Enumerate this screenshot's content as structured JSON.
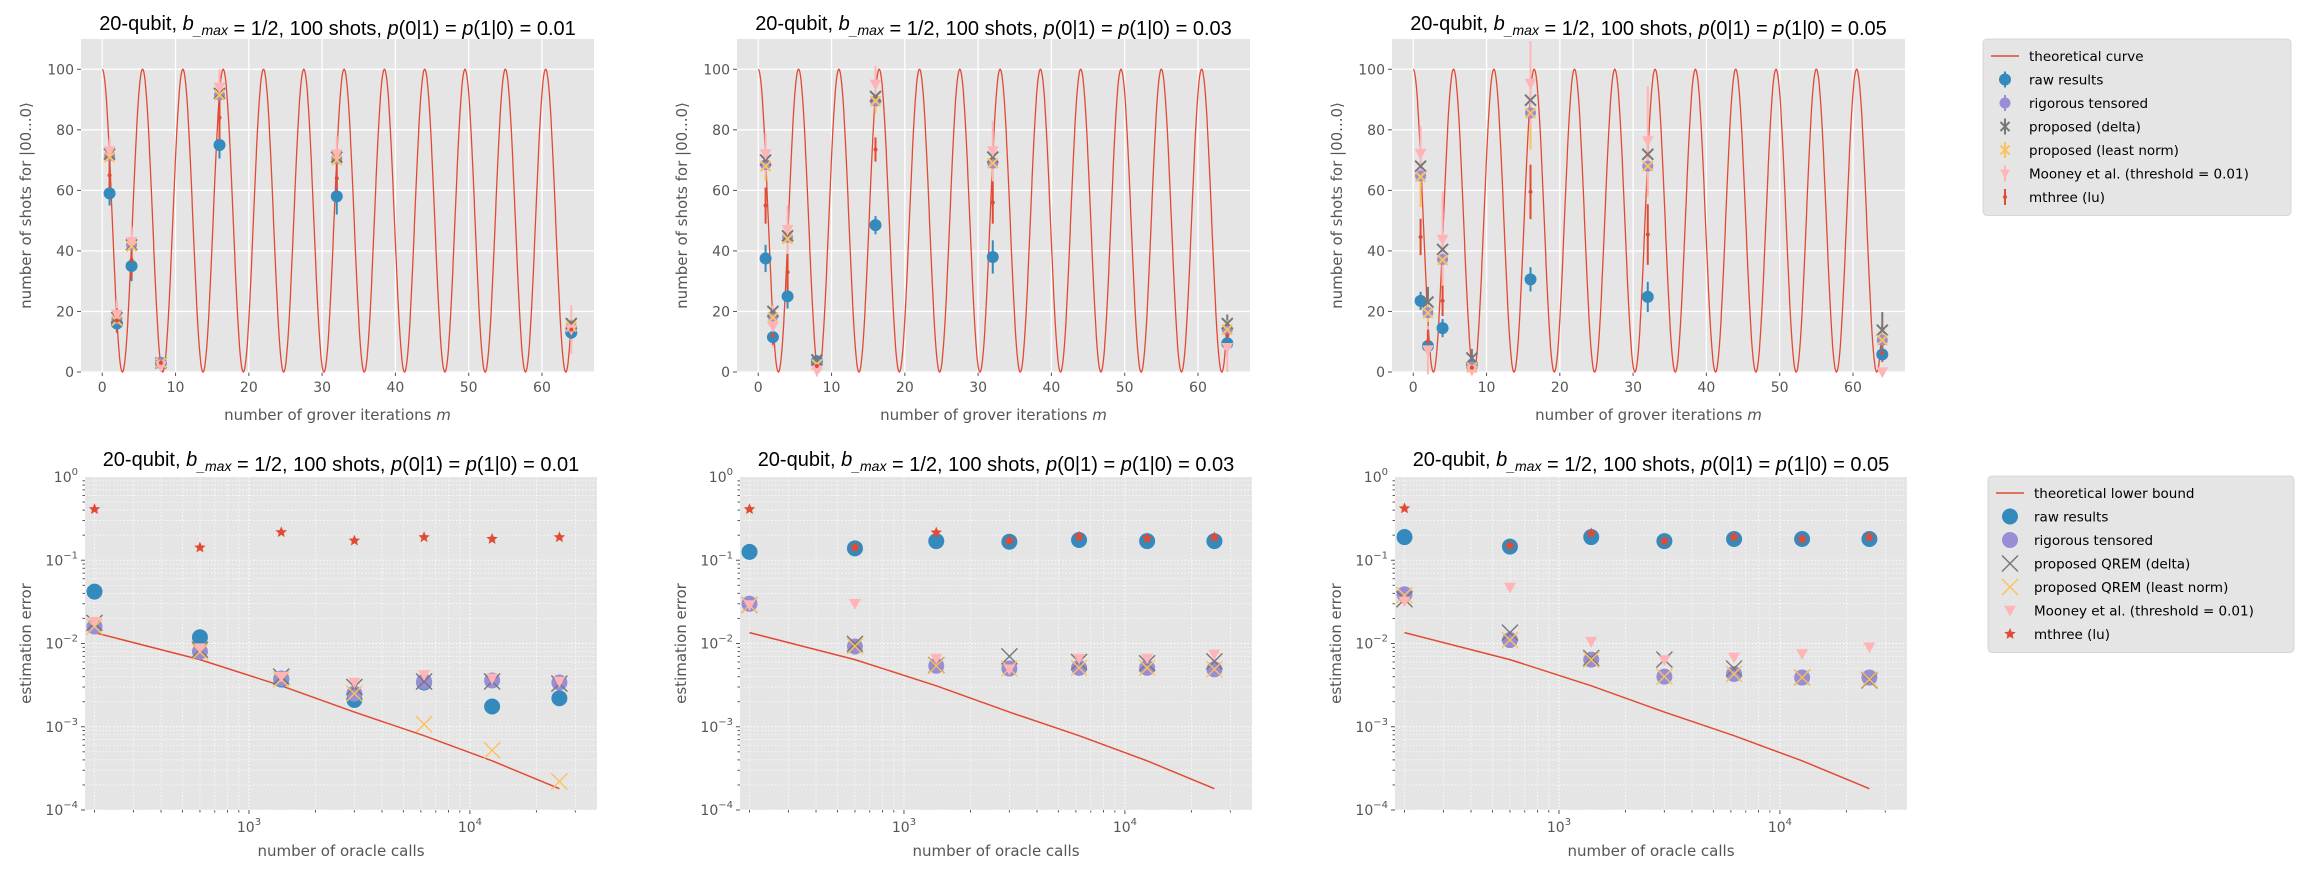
{
  "colors": {
    "background": "#E5E5E5",
    "grid": "#FFFFFF",
    "theory": "#E24A33",
    "raw": "#348ABD",
    "rigorous": "#988ED5",
    "delta": "#777777",
    "least_norm": "#FBC15E",
    "mooney": "#FFB5B8",
    "mthree": "#E24A33"
  },
  "legends": {
    "top": [
      "theoretical curve",
      "raw results",
      "rigorous tensored",
      "proposed (delta)",
      "proposed (least norm)",
      "Mooney et al. (threshold = 0.01)",
      "mthree (lu)"
    ],
    "bottom": [
      "theoretical lower bound",
      "raw results",
      "rigorous tensored",
      "proposed QREM (delta)",
      "proposed QREM (least norm)",
      "Mooney et al. (threshold = 0.01)",
      "mthree (lu)"
    ]
  },
  "chart_data": [
    {
      "type": "line",
      "row": "top",
      "title": "20-qubit, b_max = 1/2, 100 shots, p(0|1) = p(1|0) = 0.01",
      "xlabel": "number of grover iterations m",
      "ylabel": "number of shots for |00...0⟩",
      "xlim": [
        -2.9,
        67.1
      ],
      "ylim": [
        0,
        110
      ],
      "xticks": [
        "0",
        "10",
        "20",
        "30",
        "40",
        "50",
        "60"
      ],
      "yticks": [
        "0",
        "20",
        "40",
        "60",
        "80",
        "100"
      ],
      "grid": true,
      "theory": {
        "label": "theoretical curve",
        "amplitude": 100,
        "theta": 0.2856,
        "m_range": [
          0,
          64
        ]
      },
      "x": [
        1,
        2,
        4,
        8,
        16,
        32,
        64
      ],
      "series": [
        {
          "name": "raw results",
          "values": [
            59,
            16,
            35,
            3,
            75,
            58,
            13
          ],
          "yerr": [
            4,
            3,
            5,
            1.5,
            4.5,
            6,
            3
          ]
        },
        {
          "name": "rigorous tensored",
          "values": [
            71.5,
            17.5,
            42,
            3,
            91.5,
            70.5,
            15
          ],
          "yerr": [
            1.5,
            1,
            1.5,
            0.5,
            1.5,
            1.5,
            1
          ]
        },
        {
          "name": "proposed (delta)",
          "values": [
            72,
            18,
            42,
            3,
            92,
            71,
            16
          ],
          "yerr": [
            1,
            1,
            1,
            0.5,
            1,
            1,
            1.5
          ]
        },
        {
          "name": "proposed (least norm)",
          "values": [
            71,
            17,
            41.5,
            3,
            91.5,
            70,
            15
          ],
          "yerr": [
            2,
            2,
            2,
            1,
            2,
            2,
            2
          ]
        },
        {
          "name": "Mooney et al. (threshold = 0.01)",
          "values": [
            73,
            19,
            43,
            2,
            94,
            72,
            14
          ],
          "yerr": [
            4,
            5,
            5,
            2,
            6,
            6,
            8
          ]
        },
        {
          "name": "mthree (lu)",
          "values": [
            65,
            17,
            37,
            3,
            84,
            64,
            14
          ],
          "yerr": [
            7,
            4,
            6,
            2,
            7,
            8,
            3
          ]
        }
      ]
    },
    {
      "type": "line",
      "row": "top",
      "title": "20-qubit, b_max = 1/2, 100 shots, p(0|1) = p(1|0) = 0.03",
      "xlabel": "number of grover iterations m",
      "ylabel": "number of shots for |00...0⟩",
      "xlim": [
        -2.9,
        67.1
      ],
      "ylim": [
        0,
        110
      ],
      "xticks": [
        "0",
        "10",
        "20",
        "30",
        "40",
        "50",
        "60"
      ],
      "yticks": [
        "0",
        "20",
        "40",
        "60",
        "80",
        "100"
      ],
      "grid": true,
      "theory": {
        "label": "theoretical curve",
        "amplitude": 100,
        "theta": 0.2856,
        "m_range": [
          0,
          64
        ]
      },
      "x": [
        1,
        2,
        4,
        8,
        16,
        32,
        64
      ],
      "series": [
        {
          "name": "raw results",
          "values": [
            37.5,
            11.5,
            25,
            3.5,
            48.5,
            38,
            9.5
          ],
          "yerr": [
            4.5,
            3,
            4,
            2,
            3,
            5.5,
            3
          ]
        },
        {
          "name": "rigorous tensored",
          "values": [
            68.5,
            18.5,
            44.5,
            2.5,
            89.5,
            69,
            14
          ],
          "yerr": [
            2,
            2,
            2,
            1,
            2,
            2,
            2
          ]
        },
        {
          "name": "proposed (delta)",
          "values": [
            70,
            20,
            45,
            4,
            91,
            71,
            16
          ],
          "yerr": [
            2,
            2,
            2,
            1.5,
            2,
            2,
            3
          ]
        },
        {
          "name": "proposed (least norm)",
          "values": [
            68,
            18,
            44,
            2.5,
            89.5,
            69,
            14
          ],
          "yerr": [
            5,
            4,
            4,
            1,
            4,
            5,
            3
          ]
        },
        {
          "name": "Mooney et al. (threshold = 0.01)",
          "values": [
            72,
            15,
            47,
            0.5,
            95,
            73,
            8
          ],
          "yerr": [
            7,
            7,
            8,
            2,
            6,
            10,
            8
          ]
        },
        {
          "name": "mthree (lu)",
          "values": [
            55,
            12,
            33,
            2,
            73.5,
            56,
            12
          ],
          "yerr": [
            6,
            3,
            6,
            1,
            4,
            7,
            3
          ]
        }
      ]
    },
    {
      "type": "line",
      "row": "top",
      "title": "20-qubit, b_max = 1/2, 100 shots, p(0|1) = p(1|0) = 0.05",
      "xlabel": "number of grover iterations m",
      "ylabel": "number of shots for |00...0⟩",
      "xlim": [
        -2.9,
        67.1
      ],
      "ylim": [
        0,
        110
      ],
      "xticks": [
        "0",
        "10",
        "20",
        "30",
        "40",
        "50",
        "60"
      ],
      "yticks": [
        "0",
        "20",
        "40",
        "60",
        "80",
        "100"
      ],
      "grid": true,
      "theory": {
        "label": "theoretical curve",
        "amplitude": 100,
        "theta": 0.2856,
        "m_range": [
          0,
          64
        ]
      },
      "x": [
        1,
        2,
        4,
        8,
        16,
        32,
        64
      ],
      "series": [
        {
          "name": "raw results",
          "values": [
            23.5,
            8.6,
            14.5,
            2.2,
            30.6,
            24.8,
            5.8
          ],
          "yerr": [
            3,
            3,
            3,
            1.5,
            4,
            5,
            2
          ]
        },
        {
          "name": "rigorous tensored",
          "values": [
            64.8,
            19.6,
            37.2,
            1.7,
            85.6,
            68,
            10.5
          ],
          "yerr": [
            2,
            2,
            2,
            1,
            2,
            2,
            2
          ]
        },
        {
          "name": "proposed (delta)",
          "values": [
            68,
            23.1,
            40.5,
            4.6,
            89.8,
            71.9,
            13.8
          ],
          "yerr": [
            2,
            5,
            2,
            3,
            2,
            3,
            6
          ]
        },
        {
          "name": "proposed (least norm)",
          "values": [
            64.5,
            19.5,
            37,
            1.5,
            85.5,
            68,
            10.5
          ],
          "yerr": [
            10,
            3,
            9,
            1,
            12,
            10,
            3
          ]
        },
        {
          "name": "Mooney et al. (threshold = 0.01)",
          "values": [
            72.1,
            7.2,
            43.7,
            0.5,
            95.3,
            76.3,
            0
          ],
          "yerr": [
            9,
            8,
            16,
            1,
            14,
            18,
            1
          ]
        },
        {
          "name": "mthree (lu)",
          "values": [
            44.6,
            10,
            23.5,
            1.4,
            59.5,
            45.4,
            6.3
          ],
          "yerr": [
            6,
            4,
            5,
            1,
            9,
            10,
            3
          ]
        }
      ]
    },
    {
      "type": "scatter",
      "row": "bottom",
      "title": "20-qubit, b_max = 1/2, 100 shots, p(0|1) = p(1|0) = 0.01",
      "xlabel": "number of oracle calls",
      "ylabel": "estimation error",
      "xscale": "log",
      "yscale": "log",
      "xlim_log10": [
        2.258,
        4.575
      ],
      "ylim": [
        0.0001,
        1
      ],
      "xticks": [
        "3",
        "4"
      ],
      "yticks": [
        "0",
        "-1",
        "-2",
        "-3",
        "-4"
      ],
      "grid": true,
      "x": [
        200,
        600,
        1400,
        3000,
        6200,
        12600,
        25400
      ],
      "lower_bound": {
        "label": "theoretical lower bound",
        "values": [
          0.0135,
          0.0064,
          0.0031,
          0.0015,
          0.00078,
          0.00039,
          0.00018
        ]
      },
      "series": [
        {
          "name": "raw results",
          "values": [
            0.042,
            0.0119,
            0.0037,
            0.0021,
            0.0034,
            0.00175,
            0.0022
          ]
        },
        {
          "name": "rigorous tensored",
          "values": [
            0.016,
            0.008,
            0.0038,
            0.0025,
            0.0035,
            0.0036,
            0.0034
          ]
        },
        {
          "name": "proposed QREM (delta)",
          "values": [
            0.0177,
            0.0084,
            0.004,
            0.003,
            0.0035,
            0.0035,
            0.0033
          ]
        },
        {
          "name": "proposed QREM (least norm)",
          "values": [
            0.016,
            0.008,
            0.0037,
            0.0025,
            0.00107,
            0.00052,
            0.00022
          ]
        },
        {
          "name": "Mooney et al. (threshold = 0.01)",
          "values": [
            0.0182,
            0.0088,
            0.004,
            0.0034,
            0.0042,
            0.0038,
            0.0035
          ]
        },
        {
          "name": "mthree (lu)",
          "values": [
            0.41,
            0.142,
            0.217,
            0.172,
            0.189,
            0.18,
            0.189
          ]
        }
      ]
    },
    {
      "type": "scatter",
      "row": "bottom",
      "title": "20-qubit, b_max = 1/2, 100 shots, p(0|1) = p(1|0) = 0.03",
      "xlabel": "number of oracle calls",
      "ylabel": "estimation error",
      "xscale": "log",
      "yscale": "log",
      "xlim_log10": [
        2.258,
        4.575
      ],
      "ylim": [
        0.0001,
        1
      ],
      "xticks": [
        "3",
        "4"
      ],
      "yticks": [
        "0",
        "-1",
        "-2",
        "-3",
        "-4"
      ],
      "grid": true,
      "x": [
        200,
        600,
        1400,
        3000,
        6200,
        12600,
        25400
      ],
      "lower_bound": {
        "label": "theoretical lower bound",
        "values": [
          0.0135,
          0.0064,
          0.0031,
          0.0015,
          0.00078,
          0.00039,
          0.00018
        ]
      },
      "series": [
        {
          "name": "raw results",
          "values": [
            0.126,
            0.139,
            0.17,
            0.167,
            0.175,
            0.17,
            0.17
          ]
        },
        {
          "name": "rigorous tensored",
          "values": [
            0.03,
            0.0092,
            0.0054,
            0.005,
            0.0051,
            0.0051,
            0.0049
          ]
        },
        {
          "name": "proposed QREM (delta)",
          "values": [
            0.029,
            0.0099,
            0.0055,
            0.007,
            0.006,
            0.0058,
            0.0061
          ]
        },
        {
          "name": "proposed QREM (least norm)",
          "values": [
            0.029,
            0.0093,
            0.0054,
            0.005,
            0.0051,
            0.0051,
            0.0049
          ]
        },
        {
          "name": "Mooney et al. (threshold = 0.01)",
          "values": [
            0.029,
            0.03,
            0.0066,
            0.0049,
            0.0066,
            0.0066,
            0.0074
          ]
        },
        {
          "name": "mthree (lu)",
          "values": [
            0.41,
            0.143,
            0.215,
            0.172,
            0.192,
            0.183,
            0.188
          ]
        }
      ]
    },
    {
      "type": "scatter",
      "row": "bottom",
      "title": "20-qubit, b_max = 1/2, 100 shots, p(0|1) = p(1|0) = 0.05",
      "xlabel": "number of oracle calls",
      "ylabel": "estimation error",
      "xscale": "log",
      "yscale": "log",
      "xlim_log10": [
        2.258,
        4.575
      ],
      "ylim": [
        0.0001,
        1
      ],
      "xticks": [
        "3",
        "4"
      ],
      "yticks": [
        "0",
        "-1",
        "-2",
        "-3",
        "-4"
      ],
      "grid": true,
      "x": [
        200,
        600,
        1400,
        3000,
        6200,
        12600,
        25400
      ],
      "lower_bound": {
        "label": "theoretical lower bound",
        "values": [
          0.0135,
          0.0064,
          0.0031,
          0.0015,
          0.00078,
          0.00039,
          0.00018
        ]
      },
      "series": [
        {
          "name": "raw results",
          "values": [
            0.19,
            0.146,
            0.19,
            0.17,
            0.18,
            0.18,
            0.18
          ]
        },
        {
          "name": "rigorous tensored",
          "values": [
            0.039,
            0.011,
            0.0064,
            0.004,
            0.0043,
            0.0039,
            0.0039
          ]
        },
        {
          "name": "proposed QREM (delta)",
          "values": [
            0.034,
            0.0135,
            0.0067,
            0.0064,
            0.005,
            0.0039,
            0.0036
          ]
        },
        {
          "name": "proposed QREM (least norm)",
          "values": [
            0.038,
            0.011,
            0.0064,
            0.004,
            0.0043,
            0.0039,
            0.0037
          ]
        },
        {
          "name": "Mooney et al. (threshold = 0.01)",
          "values": [
            0.032,
            0.047,
            0.0105,
            0.0063,
            0.0068,
            0.0075,
            0.009
          ]
        },
        {
          "name": "mthree (lu)",
          "values": [
            0.42,
            0.15,
            0.21,
            0.17,
            0.19,
            0.18,
            0.19
          ]
        }
      ]
    }
  ]
}
